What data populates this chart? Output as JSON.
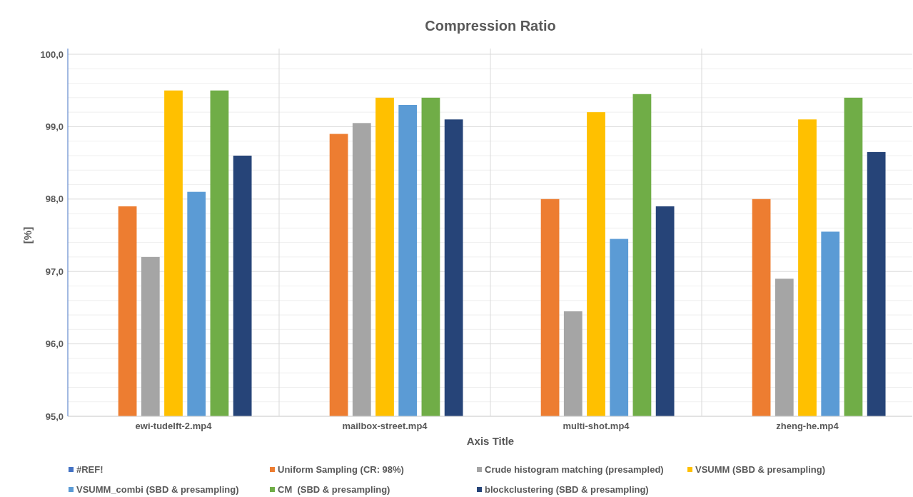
{
  "chart_data": {
    "type": "bar",
    "title": "Compression Ratio",
    "xlabel": "Axis Title",
    "ylabel": "[%]",
    "categories": [
      "ewi-tudelft-2.mp4",
      "mailbox-street.mp4",
      "multi-shot.mp4",
      "zheng-he.mp4"
    ],
    "series": [
      {
        "name": "#REF!",
        "color": "#4472c4",
        "values": [
          null,
          null,
          null,
          null
        ]
      },
      {
        "name": "Uniform Sampling (CR: 98%)",
        "color": "#ed7d31",
        "values": [
          97.9,
          98.9,
          98.0,
          98.0
        ]
      },
      {
        "name": "Crude histogram matching (presampled)",
        "color": "#a5a5a5",
        "values": [
          97.2,
          99.05,
          96.45,
          96.9
        ]
      },
      {
        "name": "VSUMM (SBD & presampling)",
        "color": "#ffc000",
        "values": [
          99.5,
          99.4,
          99.2,
          99.1
        ]
      },
      {
        "name": "VSUMM_combi (SBD & presampling)",
        "color": "#5b9bd5",
        "values": [
          98.1,
          99.3,
          97.45,
          97.55
        ]
      },
      {
        "name": "CM  (SBD & presampling)",
        "color": "#70ad47",
        "values": [
          99.5,
          99.4,
          99.45,
          99.4
        ]
      },
      {
        "name": "blockclustering (SBD & presampling)",
        "color": "#264478",
        "values": [
          98.6,
          99.1,
          97.9,
          98.65
        ]
      }
    ],
    "ylim": [
      95,
      100
    ],
    "yticks": [
      {
        "value": 95,
        "label": "95,0"
      },
      {
        "value": 95.2,
        "label": null
      },
      {
        "value": 95.4,
        "label": null
      },
      {
        "value": 95.6,
        "label": null
      },
      {
        "value": 95.8,
        "label": null
      },
      {
        "value": 96,
        "label": "96,0"
      },
      {
        "value": 96.2,
        "label": null
      },
      {
        "value": 96.4,
        "label": null
      },
      {
        "value": 96.6,
        "label": null
      },
      {
        "value": 96.8,
        "label": null
      },
      {
        "value": 97,
        "label": "97,0"
      },
      {
        "value": 97.2,
        "label": null
      },
      {
        "value": 97.4,
        "label": null
      },
      {
        "value": 97.6,
        "label": null
      },
      {
        "value": 97.8,
        "label": null
      },
      {
        "value": 98,
        "label": "98,0"
      },
      {
        "value": 98.2,
        "label": null
      },
      {
        "value": 98.4,
        "label": null
      },
      {
        "value": 98.6,
        "label": null
      },
      {
        "value": 98.8,
        "label": null
      },
      {
        "value": 99,
        "label": "99,0"
      },
      {
        "value": 99.2,
        "label": null
      },
      {
        "value": 99.4,
        "label": null
      },
      {
        "value": 99.6,
        "label": null
      },
      {
        "value": 99.8,
        "label": null
      },
      {
        "value": 100,
        "label": "100,0"
      }
    ],
    "grid": true,
    "legend": "bottom"
  }
}
